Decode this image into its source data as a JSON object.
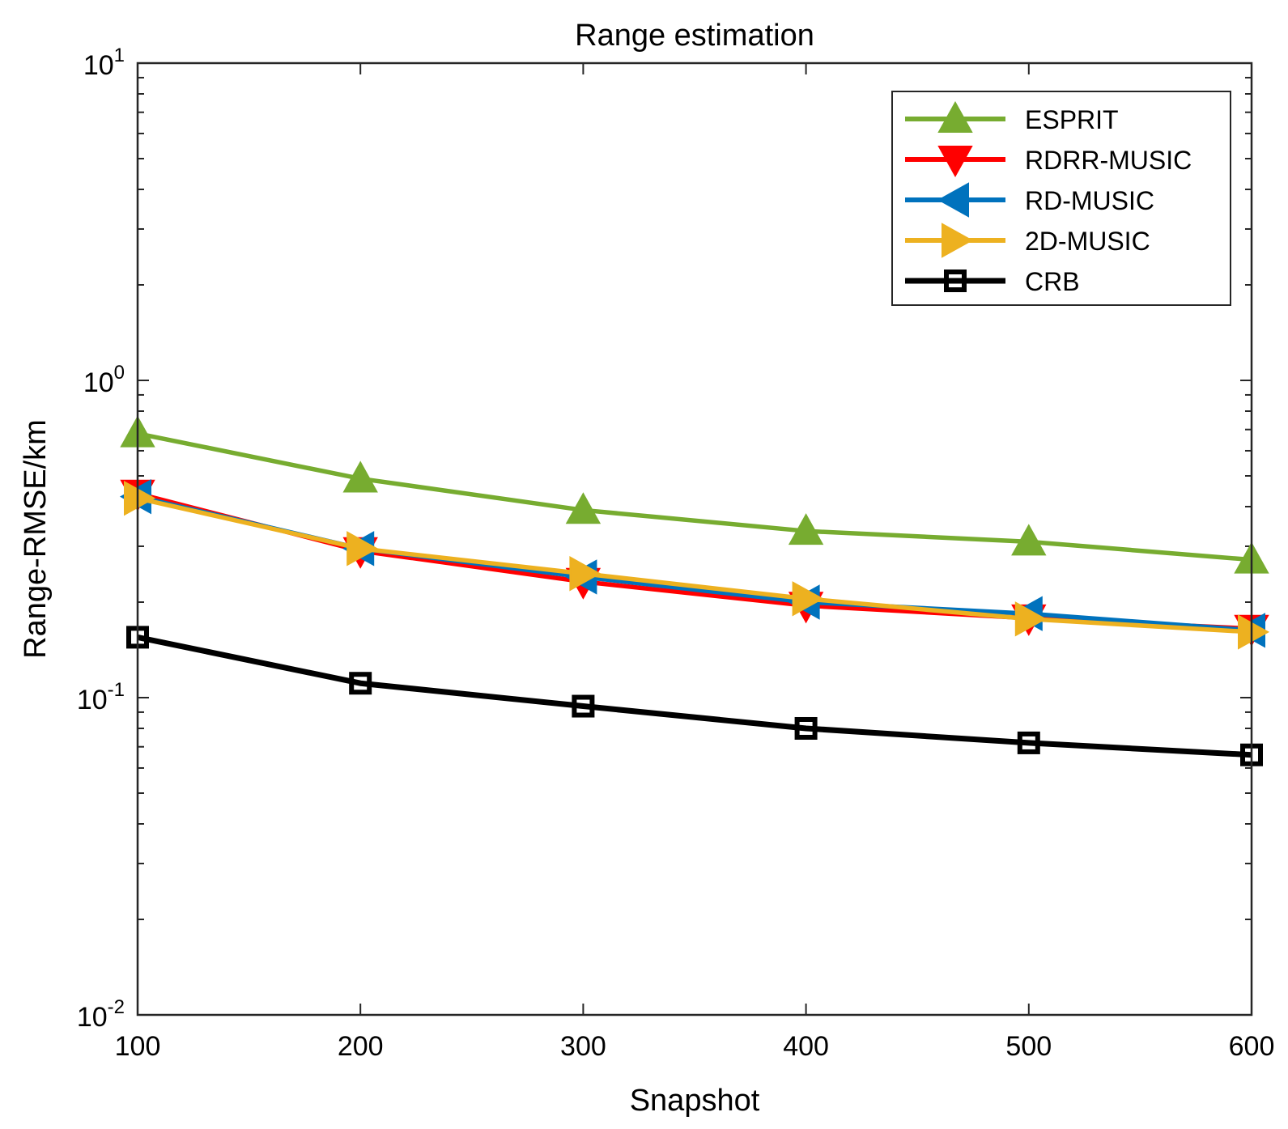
{
  "chart_data": {
    "type": "line",
    "title": "Range estimation",
    "xlabel": "Snapshot",
    "ylabel": "Range-RMSE/km",
    "x": [
      100,
      200,
      300,
      400,
      500,
      600
    ],
    "xlim": [
      100,
      600
    ],
    "x_ticks": [
      "100",
      "200",
      "300",
      "400",
      "500",
      "600"
    ],
    "yscale": "log",
    "ylim": [
      0.01,
      10
    ],
    "y_ticks": [
      {
        "base": "10",
        "exp": "1"
      },
      {
        "base": "10",
        "exp": "0"
      },
      {
        "base": "10",
        "exp": "-1"
      },
      {
        "base": "10",
        "exp": "-2"
      }
    ],
    "grid": false,
    "legend_position": "top-right",
    "series": [
      {
        "name": "ESPRIT",
        "color": "#77AC30",
        "marker": "triangle-up",
        "values": [
          0.68,
          0.49,
          0.39,
          0.335,
          0.31,
          0.272
        ]
      },
      {
        "name": "RDRR-MUSIC",
        "color": "#FF0000",
        "marker": "triangle-down",
        "values": [
          0.44,
          0.29,
          0.232,
          0.195,
          0.178,
          0.165
        ]
      },
      {
        "name": "RD-MUSIC",
        "color": "#0072BD",
        "marker": "triangle-left",
        "values": [
          0.43,
          0.295,
          0.24,
          0.2,
          0.184,
          0.163
        ]
      },
      {
        "name": "2D-MUSIC",
        "color": "#EDB120",
        "marker": "triangle-right",
        "values": [
          0.425,
          0.295,
          0.246,
          0.205,
          0.177,
          0.161
        ]
      },
      {
        "name": "CRB",
        "color": "#000000",
        "marker": "square",
        "values": [
          0.155,
          0.111,
          0.094,
          0.08,
          0.072,
          0.066
        ]
      }
    ]
  }
}
